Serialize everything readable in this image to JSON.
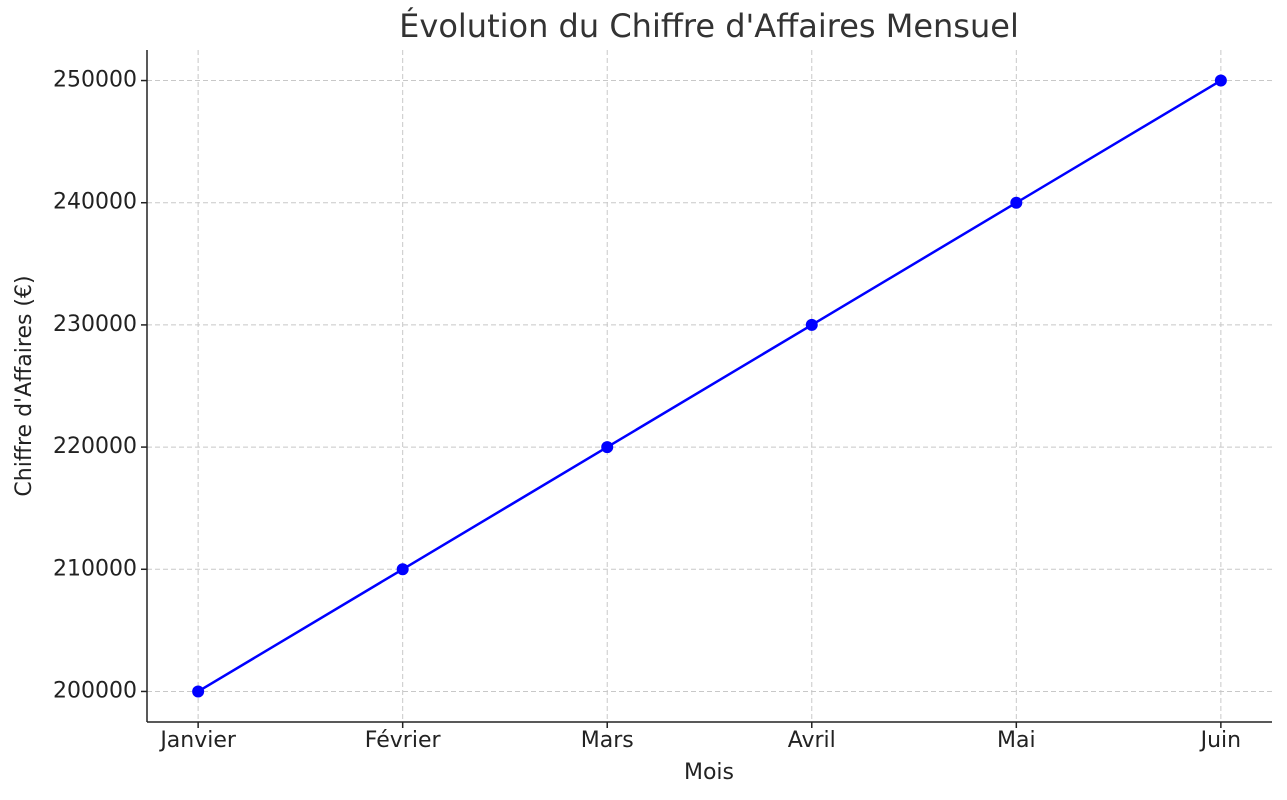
{
  "chart_data": {
    "type": "line",
    "title": "Évolution du Chiffre d'Affaires Mensuel",
    "x_label": "Mois",
    "y_label": "Chiffre d'Affaires (€)",
    "categories": [
      "Janvier",
      "Février",
      "Mars",
      "Avril",
      "Mai",
      "Juin"
    ],
    "series": [
      {
        "name": "Chiffre d'Affaires",
        "color": "#0000ff",
        "values": [
          200000,
          210000,
          220000,
          230000,
          240000,
          250000
        ]
      }
    ],
    "ylim": [
      197500,
      252500
    ],
    "yticks": [
      200000,
      210000,
      220000,
      230000,
      240000,
      250000
    ],
    "grid": true
  }
}
